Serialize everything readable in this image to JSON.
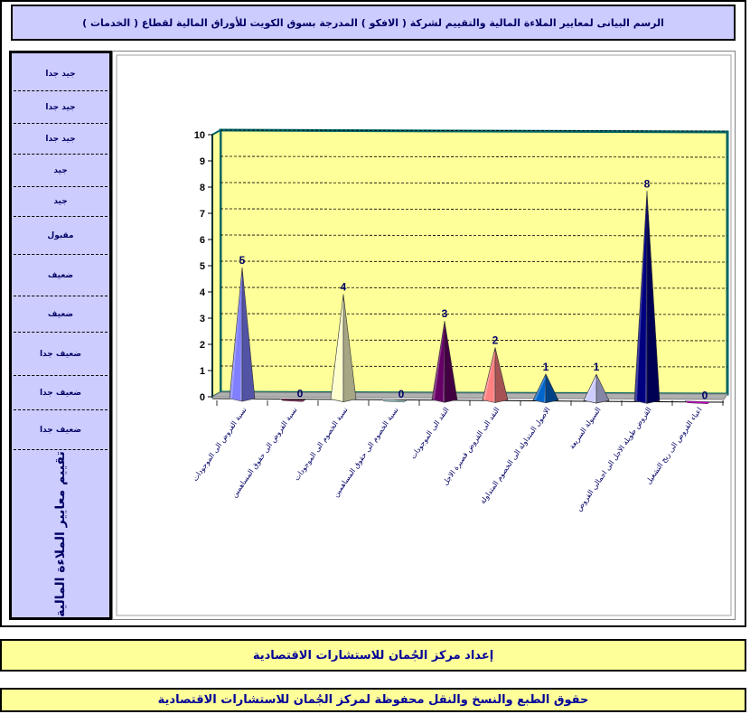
{
  "page": {
    "title": "الرسم البيانى لمعايير الملاءة المالية والتقييم لشركة ( الافكو ) المدرجة بسوق الكويت للأوراق المالية لقطاع ( الخدمات )",
    "footer_prepared": "إعداد مركز الجُمان للاستشارات الاقتصادية",
    "footer_rights": "حقوق الطبع والنسخ والنقل محفوظة لمركز الجُمان للاستشارات الاقتصادية"
  },
  "sidebar": {
    "ratings": [
      "جيد جدا",
      "جيد جدا",
      "جيد جدا",
      "جيد",
      "جيد",
      "مقبول",
      "ضعيف",
      "ضعيف",
      "ضعيف جدا",
      "ضعيف جدا",
      "ضعيف جدا"
    ],
    "vertical_label": "تقييم معايير الملاءة المالية"
  },
  "colors": {
    "plot_background": "#ffff99",
    "frame_line": "#006666",
    "sidebar_bg": "#ccccff",
    "footer_bg": "#ffff99",
    "text": "#000066"
  },
  "chart_data": {
    "type": "bar",
    "shape": "pyramid",
    "title": "",
    "xlabel": "",
    "ylabel": "",
    "ylim": [
      0,
      10
    ],
    "yticks": [
      0,
      1,
      2,
      3,
      4,
      5,
      6,
      7,
      8,
      9,
      10
    ],
    "grid": true,
    "legend": "none",
    "categories": [
      "نسبة القروض الى الموجودات",
      "نسبة القروض الى حقوق المساهمين",
      "نسبة الخصوم الى الموجودات",
      "نسبة الخصوم الى حقوق المساهمين",
      "النقد الى الموجودات",
      "النقد الى القروض قصيرة الاجل",
      "الاصول المتداولة الى الخصوم المتداولة",
      "السيولة السريعة",
      "القروض طويلة الاجل الى اجمالي القروض",
      "اعباء القروض الى ربح التشغيل"
    ],
    "values": [
      5,
      0,
      4,
      0,
      3,
      2,
      1,
      1,
      8,
      0
    ],
    "colors": [
      "#8080ff",
      "#993366",
      "#ffffcc",
      "#ccffff",
      "#660066",
      "#ff8080",
      "#0066cc",
      "#ccccff",
      "#000080",
      "#ff00ff"
    ]
  }
}
